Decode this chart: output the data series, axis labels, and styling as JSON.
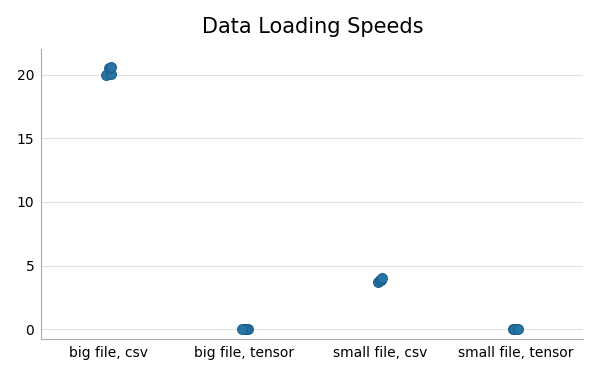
{
  "title": "Data Loading Speeds",
  "categories": [
    "big file, csv",
    "big file, tensor",
    "small file, csv",
    "small file, tensor"
  ],
  "data": {
    "big file, csv": [
      20.0,
      20.1,
      20.5,
      20.6
    ],
    "big file, tensor": [
      0.02,
      0.03,
      0.04,
      0.05
    ],
    "small file, csv": [
      3.7,
      3.85,
      3.9,
      4.0
    ],
    "small file, tensor": [
      0.01,
      0.02,
      0.03,
      0.04
    ]
  },
  "dot_color": "#2874a6",
  "dot_edgecolor": "#1a5f8a",
  "background_color": "#ffffff",
  "plot_bg_color": "#ffffff",
  "grid_color": "#e0e0e0",
  "ylim": [
    -0.8,
    22
  ],
  "yticks": [
    0,
    5,
    10,
    15,
    20
  ],
  "title_fontsize": 15,
  "tick_fontsize": 10,
  "dot_size": 50,
  "jitter_scale": 0.025
}
